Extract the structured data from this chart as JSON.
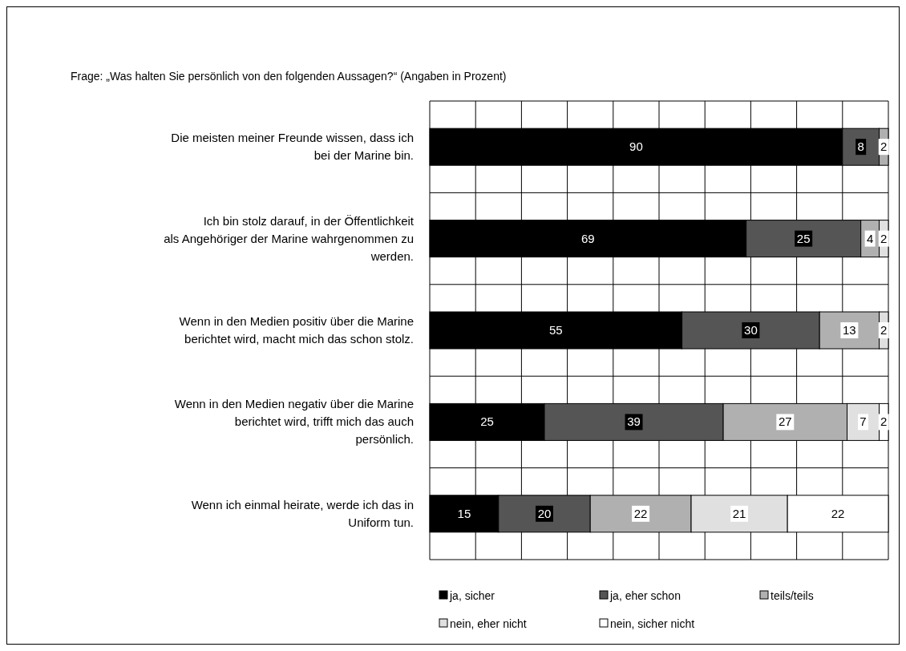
{
  "chart_data": {
    "type": "bar",
    "orientation": "horizontal",
    "stacked": true,
    "title": "Frage: „Was halten Sie persönlich von den folgenden Aussagen?“ (Angaben in Prozent)",
    "categories": [
      "Die meisten meiner Freunde wissen, dass ich bei der Marine bin.",
      "Ich bin stolz darauf, in der Öffentlichkeit als Angehöriger der Marine wahrgenommen zu werden.",
      "Wenn in den Medien positiv über die Marine berichtet wird, macht mich das schon stolz.",
      "Wenn in den Medien negativ über die Marine berichtet wird, trifft mich das auch persönlich.",
      "Wenn ich einmal heirate, werde ich das in Uniform tun."
    ],
    "series": [
      {
        "name": "ja, sicher",
        "color": "#000000",
        "values": [
          90,
          69,
          55,
          25,
          15
        ]
      },
      {
        "name": "ja, eher schon",
        "color": "#555555",
        "values": [
          8,
          25,
          30,
          39,
          20
        ]
      },
      {
        "name": "teils/teils",
        "color": "#b0b0b0",
        "values": [
          2,
          4,
          13,
          27,
          22
        ]
      },
      {
        "name": "nein, eher nicht",
        "color": "#e0e0e0",
        "values": [
          null,
          2,
          2,
          7,
          21
        ]
      },
      {
        "name": "nein, sicher nicht",
        "color": "#ffffff",
        "values": [
          null,
          null,
          null,
          2,
          22
        ]
      }
    ],
    "xlim": [
      0,
      100
    ],
    "xticks": [
      {
        "value": 0,
        "label": null
      },
      {
        "value": 10,
        "label": null
      },
      {
        "value": 20,
        "label": null
      },
      {
        "value": 30,
        "label": null
      },
      {
        "value": 40,
        "label": null
      },
      {
        "value": 50,
        "label": null
      },
      {
        "value": 60,
        "label": null
      },
      {
        "value": 70,
        "label": null
      },
      {
        "value": 80,
        "label": null
      },
      {
        "value": 90,
        "label": null
      },
      {
        "value": 100,
        "label": null
      }
    ],
    "tick_labels": "y",
    "grid": true,
    "data_labels": true,
    "legend": "bottom"
  }
}
